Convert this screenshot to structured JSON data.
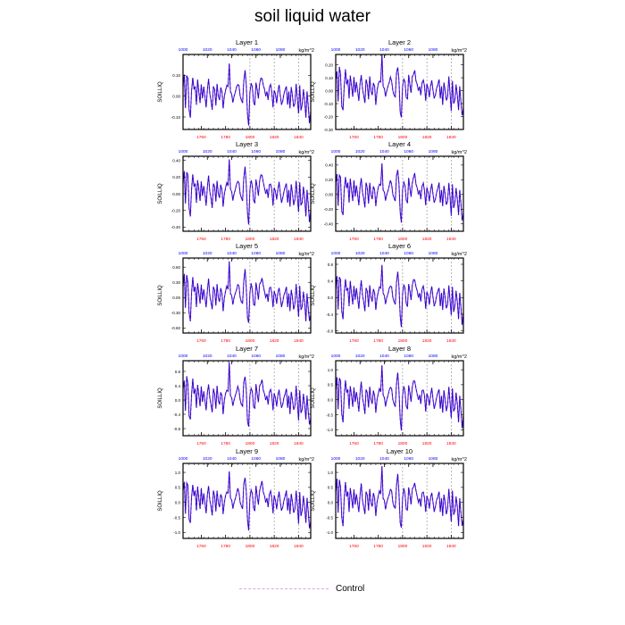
{
  "figure": {
    "title": "soil liquid water",
    "legend_label": "Control",
    "colors": {
      "control_line": "#d9a3e8",
      "series": "#2b00cc",
      "top_ticks": "#0000ff",
      "bottom_ticks": "#ff0000"
    }
  },
  "chart_data": [
    {
      "type": "line",
      "title": "Layer 1",
      "ylabel": "SOILLIQ",
      "units": "kg/m^2",
      "xlim": [
        1745,
        1850
      ],
      "ylim": [
        -0.16,
        0.2
      ],
      "yticks": [
        -0.1,
        0,
        0.1
      ],
      "ytick_labels": [
        "-0.10",
        "0.00",
        "0.10"
      ],
      "xticks_bottom": [
        1760,
        1780,
        1800,
        1820,
        1840
      ],
      "xticks_top_labels": [
        "1000",
        "1020",
        "1040",
        "1060",
        "1080"
      ],
      "grid_x": [
        1800,
        1820,
        1840
      ]
    },
    {
      "type": "line",
      "title": "Layer 2",
      "ylabel": "SOILLIQ",
      "units": "kg/m^2",
      "xlim": [
        1745,
        1850
      ],
      "ylim": [
        -0.3,
        0.28
      ],
      "yticks": [
        -0.3,
        -0.2,
        -0.1,
        0,
        0.1,
        0.2
      ],
      "ytick_labels": [
        "-0.30",
        "-0.20",
        "-0.10",
        "0.00",
        "0.10",
        "0.20"
      ],
      "xticks_bottom": [
        1760,
        1780,
        1800,
        1820,
        1840
      ],
      "xticks_top_labels": [
        "1000",
        "1020",
        "1040",
        "1060",
        "1080"
      ],
      "grid_x": [
        1800,
        1820,
        1840
      ]
    },
    {
      "type": "line",
      "title": "Layer 3",
      "ylabel": "SOILLIQ",
      "units": "kg/m^2",
      "xlim": [
        1745,
        1850
      ],
      "ylim": [
        -0.45,
        0.45
      ],
      "yticks": [
        -0.4,
        -0.2,
        0,
        0.2,
        0.4
      ],
      "ytick_labels": [
        "-0.40",
        "-0.20",
        "0.00",
        "0.20",
        "0.40"
      ],
      "xticks_bottom": [
        1760,
        1780,
        1800,
        1820,
        1840
      ],
      "xticks_top_labels": [
        "1000",
        "1020",
        "1040",
        "1060",
        "1080"
      ],
      "grid_x": [
        1800,
        1820,
        1840
      ]
    },
    {
      "type": "line",
      "title": "Layer 4",
      "ylabel": "SOILLIQ",
      "units": "kg/m^2",
      "xlim": [
        1745,
        1850
      ],
      "ylim": [
        -0.5,
        0.52
      ],
      "yticks": [
        -0.4,
        -0.2,
        0,
        0.2,
        0.4
      ],
      "ytick_labels": [
        "-0.40",
        "-0.20",
        "0.00",
        "0.20",
        "0.40"
      ],
      "xticks_bottom": [
        1760,
        1780,
        1800,
        1820,
        1840
      ],
      "xticks_top_labels": [
        "1000",
        "1020",
        "1040",
        "1060",
        "1080"
      ],
      "grid_x": [
        1800,
        1820,
        1840
      ]
    },
    {
      "type": "line",
      "title": "Layer 5",
      "ylabel": "SOILLIQ",
      "units": "kg/m^2",
      "xlim": [
        1745,
        1850
      ],
      "ylim": [
        -0.7,
        0.78
      ],
      "yticks": [
        -0.6,
        -0.3,
        0,
        0.3,
        0.6
      ],
      "ytick_labels": [
        "-0.60",
        "-0.30",
        "0.00",
        "0.30",
        "0.60"
      ],
      "xticks_bottom": [
        1760,
        1780,
        1800,
        1820,
        1840
      ],
      "xticks_top_labels": [
        "1000",
        "1020",
        "1040",
        "1060",
        "1080"
      ],
      "grid_x": [
        1800,
        1820,
        1840
      ]
    },
    {
      "type": "line",
      "title": "Layer 6",
      "ylabel": "SOILLIQ",
      "units": "kg/m^2",
      "xlim": [
        1745,
        1850
      ],
      "ylim": [
        -0.85,
        0.95
      ],
      "yticks": [
        -0.8,
        -0.4,
        0,
        0.4,
        0.8
      ],
      "ytick_labels": [
        "-0.8",
        "-0.4",
        "0.0",
        "0.4",
        "0.8"
      ],
      "xticks_bottom": [
        1760,
        1780,
        1800,
        1820,
        1840
      ],
      "xticks_top_labels": [
        "1000",
        "1020",
        "1040",
        "1060",
        "1080"
      ],
      "grid_x": [
        1800,
        1820,
        1840
      ]
    },
    {
      "type": "line",
      "title": "Layer 7",
      "ylabel": "SOILLIQ",
      "units": "kg/m^2",
      "xlim": [
        1745,
        1850
      ],
      "ylim": [
        -1.0,
        1.1
      ],
      "yticks": [
        -0.8,
        -0.4,
        0,
        0.4,
        0.8
      ],
      "ytick_labels": [
        "-0.8",
        "-0.4",
        "0.0",
        "0.4",
        "0.8"
      ],
      "xticks_bottom": [
        1760,
        1780,
        1800,
        1820,
        1840
      ],
      "xticks_top_labels": [
        "1000",
        "1020",
        "1040",
        "1060",
        "1080"
      ],
      "grid_x": [
        1800,
        1820,
        1840
      ]
    },
    {
      "type": "line",
      "title": "Layer 8",
      "ylabel": "SOILLIQ",
      "units": "kg/m^2",
      "xlim": [
        1745,
        1850
      ],
      "ylim": [
        -1.2,
        1.3
      ],
      "yticks": [
        -1.0,
        -0.5,
        0,
        0.5,
        1.0
      ],
      "ytick_labels": [
        "-1.0",
        "-0.5",
        "0.0",
        "0.5",
        "1.0"
      ],
      "xticks_bottom": [
        1760,
        1780,
        1800,
        1820,
        1840
      ],
      "xticks_top_labels": [
        "1000",
        "1020",
        "1040",
        "1060",
        "1080"
      ],
      "grid_x": [
        1800,
        1820,
        1840
      ]
    },
    {
      "type": "line",
      "title": "Layer 9",
      "ylabel": "SOILLIQ",
      "units": "kg/m^2",
      "xlim": [
        1745,
        1850
      ],
      "ylim": [
        -1.2,
        1.3
      ],
      "yticks": [
        -1.0,
        -0.5,
        0,
        0.5,
        1.0
      ],
      "ytick_labels": [
        "-1.0",
        "-0.5",
        "0.0",
        "0.5",
        "1.0"
      ],
      "xticks_bottom": [
        1760,
        1780,
        1800,
        1820,
        1840
      ],
      "xticks_top_labels": [
        "1000",
        "1020",
        "1040",
        "1060",
        "1080"
      ],
      "grid_x": [
        1800,
        1820,
        1840
      ]
    },
    {
      "type": "line",
      "title": "Layer 10",
      "ylabel": "SOILLIQ",
      "units": "kg/m^2",
      "xlim": [
        1745,
        1850
      ],
      "ylim": [
        -1.2,
        1.3
      ],
      "yticks": [
        -1.0,
        -0.5,
        0,
        0.5,
        1.0
      ],
      "ytick_labels": [
        "-1.0",
        "-0.5",
        "0.0",
        "0.5",
        "1.0"
      ],
      "xticks_bottom": [
        1760,
        1780,
        1800,
        1820,
        1840
      ],
      "xticks_top_labels": [
        "1000",
        "1020",
        "1040",
        "1060",
        "1080"
      ],
      "grid_x": [
        1800,
        1820,
        1840
      ]
    }
  ],
  "series": {
    "x_start": 1745,
    "x_end": 1850,
    "base_shape": [
      0.05,
      0.1,
      -0.05,
      0.1,
      0.08,
      -0.07,
      -0.1,
      0.02,
      0.09,
      0.03,
      0.05,
      -0.04,
      0.07,
      0.02,
      -0.03,
      0.06,
      -0.01,
      0.04,
      0.0,
      -0.05,
      0.03,
      0.08,
      0.01,
      -0.02,
      -0.06,
      0.05,
      0.03,
      -0.04,
      0.06,
      0.0,
      -0.02,
      0.04,
      0.02,
      -0.06,
      0.0,
      0.03,
      0.05,
      0.04,
      0.16,
      0.02,
      0.01,
      -0.03,
      0.0,
      0.02,
      0.04,
      0.06,
      0.05,
      0.0,
      -0.02,
      -0.03,
      0.08,
      0.12,
      0.05,
      -0.09,
      -0.13,
      0.02,
      0.06,
      0.04,
      -0.03,
      -0.04,
      0.07,
      0.03,
      -0.01,
      0.06,
      0.08,
      0.09,
      0.05,
      0.03,
      0.0,
      0.02,
      -0.02,
      0.04,
      0.05,
      0.02,
      -0.05,
      0.03,
      0.01,
      -0.03,
      0.02,
      0.05,
      0.0,
      -0.04,
      -0.02,
      0.01,
      0.03,
      0.05,
      -0.04,
      0.02,
      -0.06,
      0.04,
      0.0,
      -0.05,
      -0.03,
      0.06,
      -0.01,
      -0.09,
      0.05,
      -0.06,
      -0.04,
      0.03,
      -0.02,
      -0.1,
      0.02,
      -0.05,
      -0.12,
      -0.08
    ]
  }
}
